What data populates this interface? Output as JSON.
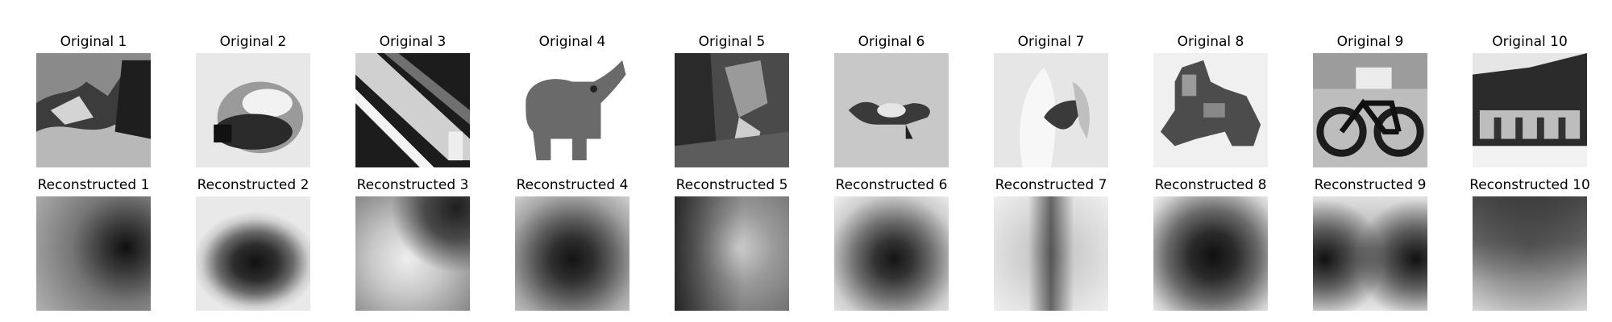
{
  "panels": [
    {
      "original_title": "Original 1",
      "reconstructed_title": "Reconstructed 1",
      "original_subject": "cluttered outdoor scene with dark tree at right",
      "reconstructed_subject": "blurry gray field with dark blob at right"
    },
    {
      "original_title": "Original 2",
      "reconstructed_title": "Reconstructed 2",
      "original_subject": "round shiny object on light background",
      "reconstructed_subject": "dark central blob on light background"
    },
    {
      "original_title": "Original 3",
      "reconstructed_title": "Reconstructed 3",
      "original_subject": "diagonal train/structure, high contrast",
      "reconstructed_subject": "light diffuse center with darker top-right corner"
    },
    {
      "original_title": "Original 4",
      "reconstructed_title": "Reconstructed 4",
      "original_subject": "elephant with raised trunk on white background",
      "reconstructed_subject": "dark central blob fading to light edges"
    },
    {
      "original_title": "Original 5",
      "reconstructed_title": "Reconstructed 5",
      "original_subject": "dark textured foliage scene",
      "reconstructed_subject": "noisy mid-gray field with dark left side"
    },
    {
      "original_title": "Original 6",
      "reconstructed_title": "Reconstructed 6",
      "original_subject": "small figure/crab on light gray background",
      "reconstructed_subject": "dark center blob on light background"
    },
    {
      "original_title": "Original 7",
      "reconstructed_title": "Reconstructed 7",
      "original_subject": "light bird/feather shape",
      "reconstructed_subject": "light field with dark vertical central band"
    },
    {
      "original_title": "Original 8",
      "reconstructed_title": "Reconstructed 8",
      "original_subject": "camel/animal shape with dark texture",
      "reconstructed_subject": "dark central blob on light background"
    },
    {
      "original_title": "Original 9",
      "reconstructed_title": "Reconstructed 9",
      "original_subject": "bicycle in front of wall",
      "reconstructed_subject": "dark left/right masses with light top and bottom"
    },
    {
      "original_title": "Original 10",
      "reconstructed_title": "Reconstructed 10",
      "original_subject": "building facade with light sky",
      "reconstructed_subject": "dark noisy upper half fading lighter at bottom"
    }
  ]
}
